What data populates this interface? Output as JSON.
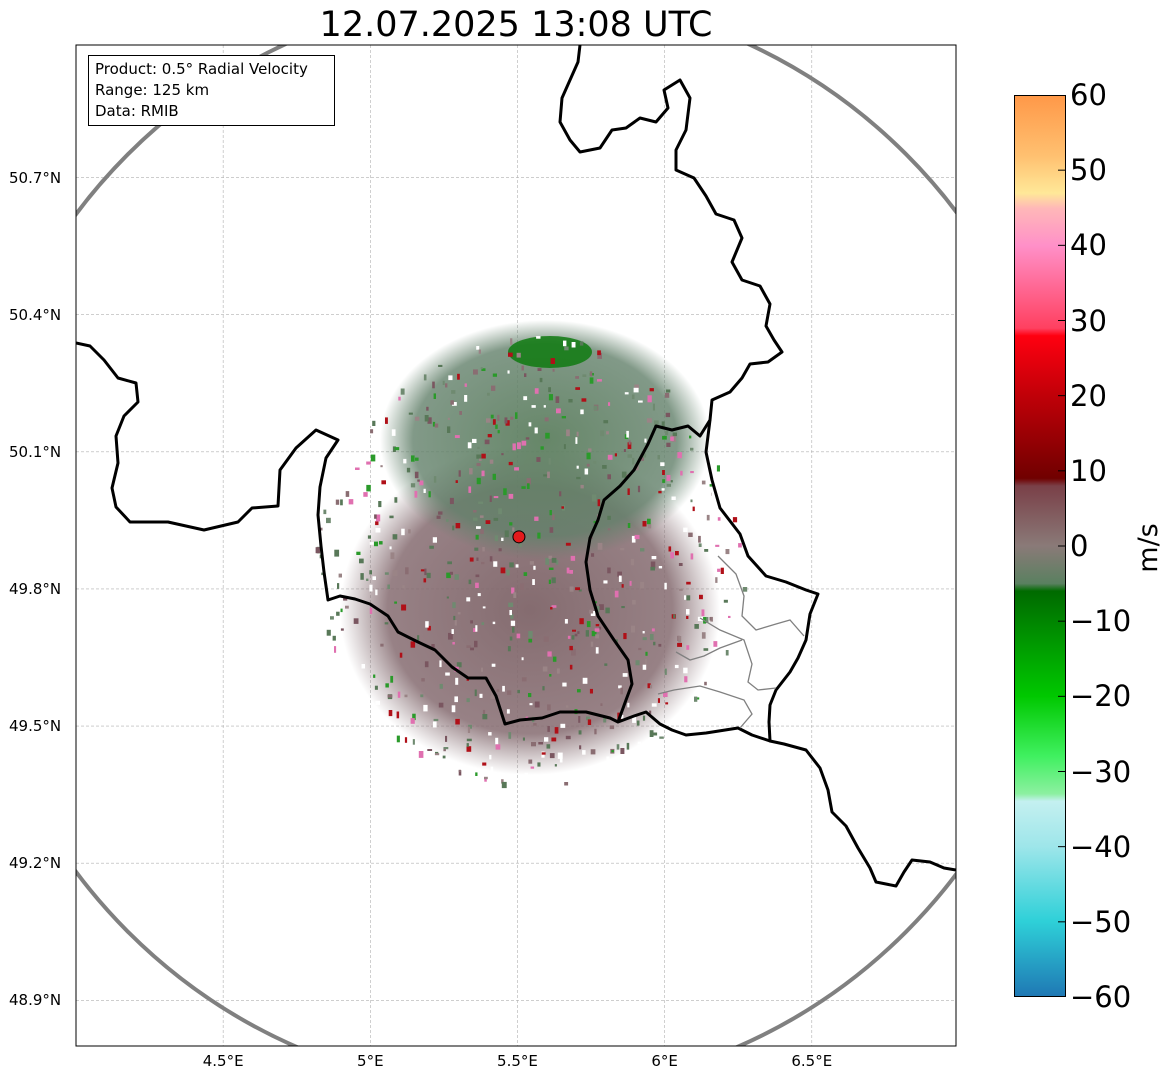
{
  "title": "12.07.2025 13:08 UTC",
  "info_box": {
    "product": "Product: 0.5° Radial Velocity",
    "range": "Range: 125 km",
    "data": "Data: RMIB"
  },
  "map": {
    "extent": {
      "lon_min": 4.0,
      "lon_max": 6.99,
      "lat_min": 48.8,
      "lat_max": 50.99
    },
    "radar_site": {
      "lon": 5.505,
      "lat": 49.914
    },
    "range_km": 125,
    "latitude_labels": [
      {
        "value": 50.7,
        "text": "50.7°N"
      },
      {
        "value": 50.4,
        "text": "50.4°N"
      },
      {
        "value": 50.1,
        "text": "50.1°N"
      },
      {
        "value": 49.8,
        "text": "49.8°N"
      },
      {
        "value": 49.5,
        "text": "49.5°N"
      },
      {
        "value": 49.2,
        "text": "49.2°N"
      },
      {
        "value": 48.9,
        "text": "48.9°N"
      }
    ],
    "longitude_labels": [
      {
        "value": 4.5,
        "text": "4.5°E"
      },
      {
        "value": 5.0,
        "text": "5°E"
      },
      {
        "value": 5.5,
        "text": "5.5°E"
      },
      {
        "value": 6.0,
        "text": "6°E"
      },
      {
        "value": 6.5,
        "text": "6.5°E"
      }
    ],
    "colors": {
      "border": "#000000",
      "region_border": "#808080",
      "range_ring": "#808080",
      "grid": "#b0b0b0",
      "radar_site": "#e31a1c"
    }
  },
  "colorbar": {
    "label": "m/s",
    "min": -60,
    "max": 60,
    "ticks": [
      {
        "value": 60,
        "text": "60"
      },
      {
        "value": 50,
        "text": "50"
      },
      {
        "value": 40,
        "text": "40"
      },
      {
        "value": 30,
        "text": "30"
      },
      {
        "value": 20,
        "text": "20"
      },
      {
        "value": 10,
        "text": "10"
      },
      {
        "value": 0,
        "text": "0"
      },
      {
        "value": -10,
        "text": "−10"
      },
      {
        "value": -20,
        "text": "−20"
      },
      {
        "value": -30,
        "text": "−30"
      },
      {
        "value": -40,
        "text": "−40"
      },
      {
        "value": -50,
        "text": "−50"
      },
      {
        "value": -60,
        "text": "−60"
      }
    ],
    "stops": [
      {
        "value": -60,
        "color": "#1f78b4"
      },
      {
        "value": -50,
        "color": "#2ed0d8"
      },
      {
        "value": -40,
        "color": "#9ee6ea"
      },
      {
        "value": -34,
        "color": "#c4f0f0"
      },
      {
        "value": -33,
        "color": "#8cf0a0"
      },
      {
        "value": -28,
        "color": "#40f060"
      },
      {
        "value": -20,
        "color": "#00c800"
      },
      {
        "value": -6,
        "color": "#006a00"
      },
      {
        "value": -5,
        "color": "#5a8060"
      },
      {
        "value": 0,
        "color": "#8a7a78"
      },
      {
        "value": 8,
        "color": "#7a4048"
      },
      {
        "value": 9,
        "color": "#700000"
      },
      {
        "value": 20,
        "color": "#c00008"
      },
      {
        "value": 28,
        "color": "#ff0010"
      },
      {
        "value": 29,
        "color": "#ff4060"
      },
      {
        "value": 40,
        "color": "#ff90c8"
      },
      {
        "value": 45,
        "color": "#ffb8b8"
      },
      {
        "value": 47,
        "color": "#ffe898"
      },
      {
        "value": 52,
        "color": "#ffc070"
      },
      {
        "value": 60,
        "color": "#ff9848"
      }
    ]
  }
}
